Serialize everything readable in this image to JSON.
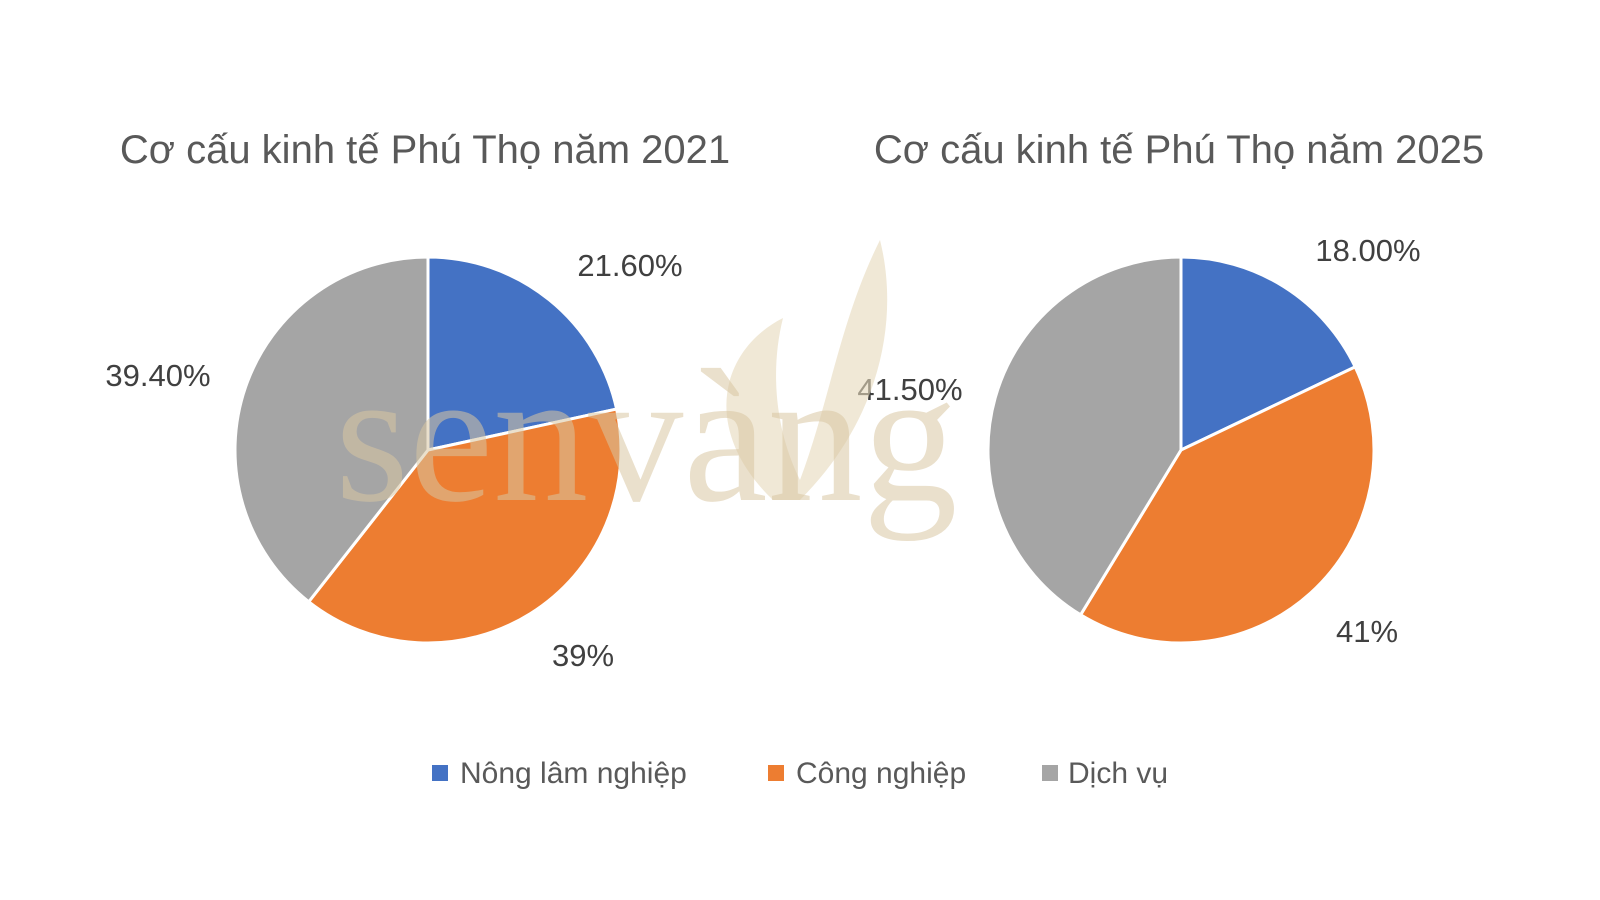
{
  "watermark": {
    "text": "senvàng"
  },
  "chart_data": [
    {
      "type": "pie",
      "title": "Cơ cấu kinh tế Phú Thọ năm 2021",
      "categories": [
        "Nông lâm nghiệp",
        "Công nghiệp",
        "Dịch vụ"
      ],
      "values": [
        21.6,
        39,
        39.4
      ],
      "data_labels": [
        "21.60%",
        "39%",
        "39.40%"
      ],
      "colors": [
        "#4472c4",
        "#ed7d31",
        "#a5a5a5"
      ],
      "start_angle": "12 o'clock, clockwise"
    },
    {
      "type": "pie",
      "title": "Cơ cấu kinh tế Phú Thọ năm 2025",
      "categories": [
        "Nông lâm nghiệp",
        "Công nghiệp",
        "Dịch vụ"
      ],
      "values": [
        18,
        41,
        41.5
      ],
      "data_labels": [
        "18.00%",
        "41%",
        "41.50%"
      ],
      "colors": [
        "#4472c4",
        "#ed7d31",
        "#a5a5a5"
      ],
      "start_angle": "12 o'clock, clockwise"
    }
  ],
  "legend": {
    "placement": "bottom",
    "items": [
      {
        "label": "Nông lâm nghiệp",
        "color": "#4472c4"
      },
      {
        "label": "Công nghiệp",
        "color": "#ed7d31"
      },
      {
        "label": "Dịch vụ",
        "color": "#a5a5a5"
      }
    ]
  }
}
